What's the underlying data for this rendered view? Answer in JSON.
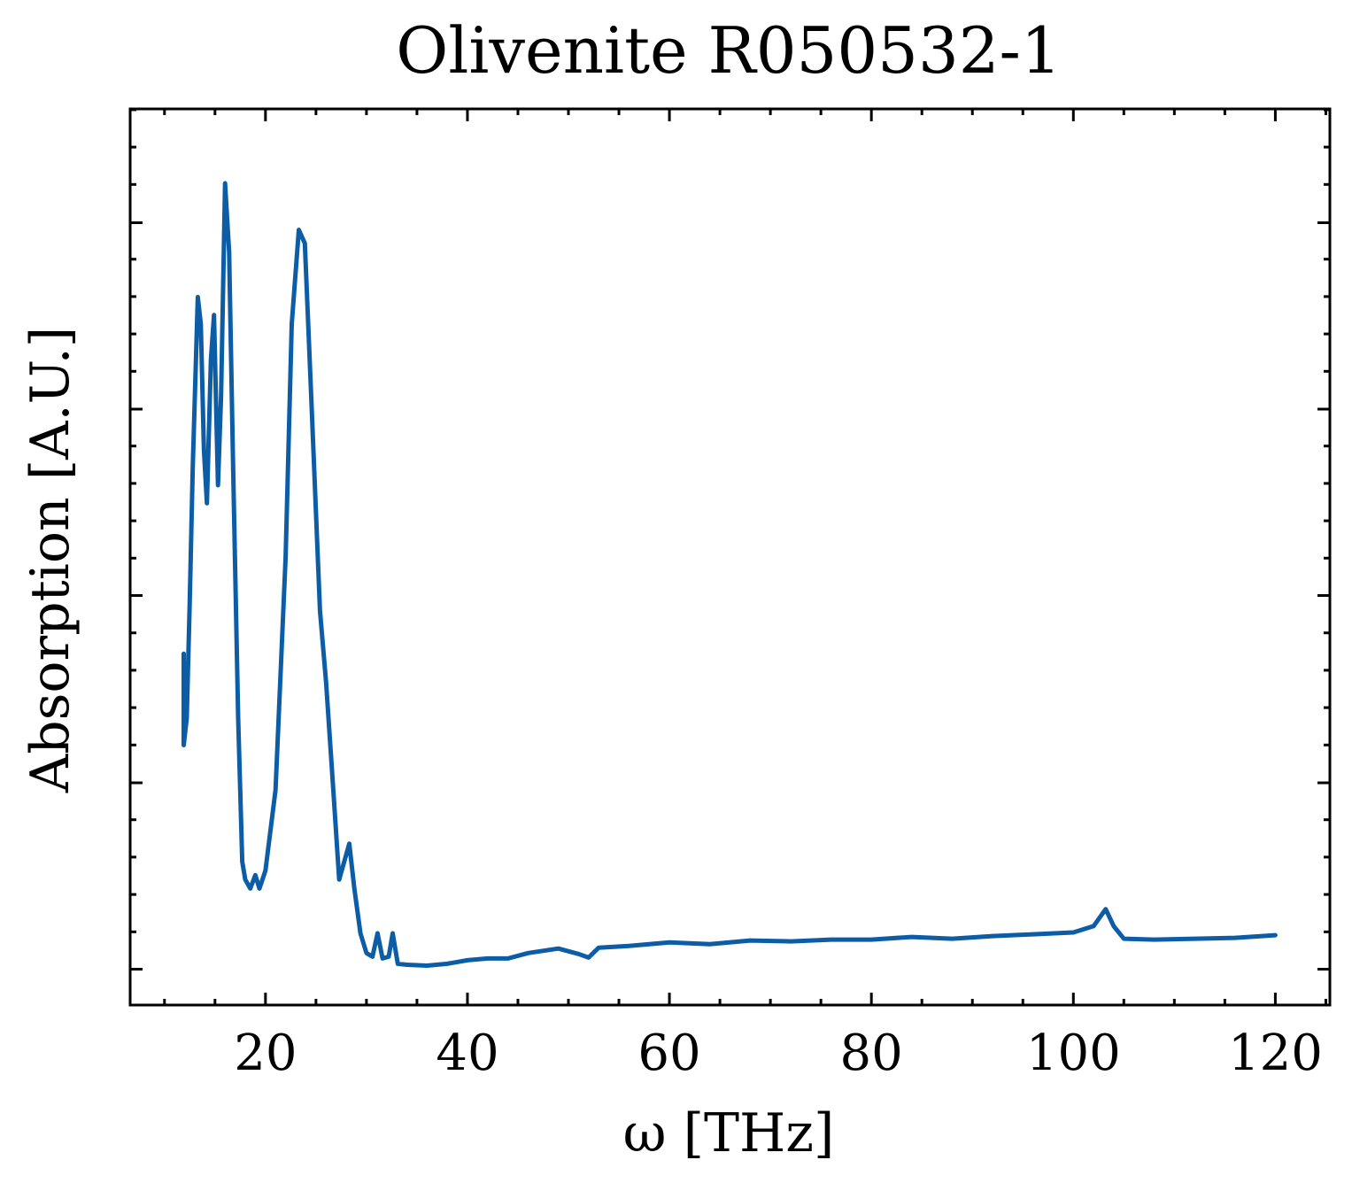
{
  "chart_data": {
    "type": "line",
    "title": "Olivenite R050532-1",
    "xlabel": "ω [THz]",
    "ylabel": "Absorption [A.U.]",
    "xlim": [
      6.6,
      125.4
    ],
    "ylim": [
      0.0,
      1.0
    ],
    "xticks": [
      20,
      40,
      60,
      80,
      100,
      120
    ],
    "xtick_labels": [
      "20",
      "40",
      "60",
      "80",
      "100",
      "120"
    ],
    "x_minor_step": 5,
    "yticks": [
      0.04,
      0.248,
      0.457,
      0.665,
      0.873
    ],
    "ytick_labels": [
      "",
      "",
      "",
      "",
      ""
    ],
    "y_minor_step": 0.0417,
    "grid": false,
    "legend": "none",
    "series": [
      {
        "color": "#0C5DA5",
        "points": [
          [
            11.9,
            0.392
          ],
          [
            11.9,
            0.29
          ],
          [
            12.2,
            0.32
          ],
          [
            12.5,
            0.45
          ],
          [
            12.8,
            0.6
          ],
          [
            13.3,
            0.79
          ],
          [
            13.6,
            0.76
          ],
          [
            13.9,
            0.62
          ],
          [
            14.2,
            0.56
          ],
          [
            14.6,
            0.72
          ],
          [
            14.9,
            0.77
          ],
          [
            15.3,
            0.58
          ],
          [
            15.6,
            0.68
          ],
          [
            16.0,
            0.917
          ],
          [
            16.4,
            0.84
          ],
          [
            16.8,
            0.6
          ],
          [
            17.3,
            0.32
          ],
          [
            17.7,
            0.16
          ],
          [
            18.0,
            0.14
          ],
          [
            18.5,
            0.13
          ],
          [
            19.0,
            0.145
          ],
          [
            19.4,
            0.13
          ],
          [
            20.0,
            0.15
          ],
          [
            21.0,
            0.24
          ],
          [
            22.0,
            0.5
          ],
          [
            22.6,
            0.76
          ],
          [
            23.3,
            0.865
          ],
          [
            23.9,
            0.85
          ],
          [
            24.6,
            0.66
          ],
          [
            25.4,
            0.44
          ],
          [
            26.0,
            0.36
          ],
          [
            26.6,
            0.26
          ],
          [
            27.3,
            0.14
          ],
          [
            27.8,
            0.16
          ],
          [
            28.3,
            0.18
          ],
          [
            28.8,
            0.13
          ],
          [
            29.4,
            0.08
          ],
          [
            30.0,
            0.058
          ],
          [
            30.6,
            0.054
          ],
          [
            31.1,
            0.08
          ],
          [
            31.6,
            0.052
          ],
          [
            32.2,
            0.054
          ],
          [
            32.6,
            0.08
          ],
          [
            33.1,
            0.046
          ],
          [
            34.0,
            0.045
          ],
          [
            36.0,
            0.044
          ],
          [
            38.0,
            0.046
          ],
          [
            40.0,
            0.05
          ],
          [
            42.0,
            0.052
          ],
          [
            44.0,
            0.052
          ],
          [
            46.0,
            0.058
          ],
          [
            49.0,
            0.063
          ],
          [
            51.0,
            0.057
          ],
          [
            52.0,
            0.053
          ],
          [
            53.0,
            0.064
          ],
          [
            56.0,
            0.066
          ],
          [
            60.0,
            0.07
          ],
          [
            64.0,
            0.068
          ],
          [
            68.0,
            0.072
          ],
          [
            72.0,
            0.071
          ],
          [
            76.0,
            0.073
          ],
          [
            80.0,
            0.073
          ],
          [
            84.0,
            0.076
          ],
          [
            88.0,
            0.074
          ],
          [
            92.0,
            0.077
          ],
          [
            96.0,
            0.079
          ],
          [
            100.0,
            0.081
          ],
          [
            102.0,
            0.088
          ],
          [
            103.2,
            0.107
          ],
          [
            104.0,
            0.088
          ],
          [
            105.0,
            0.074
          ],
          [
            108.0,
            0.073
          ],
          [
            112.0,
            0.074
          ],
          [
            116.0,
            0.075
          ],
          [
            120.0,
            0.078
          ]
        ]
      }
    ]
  }
}
